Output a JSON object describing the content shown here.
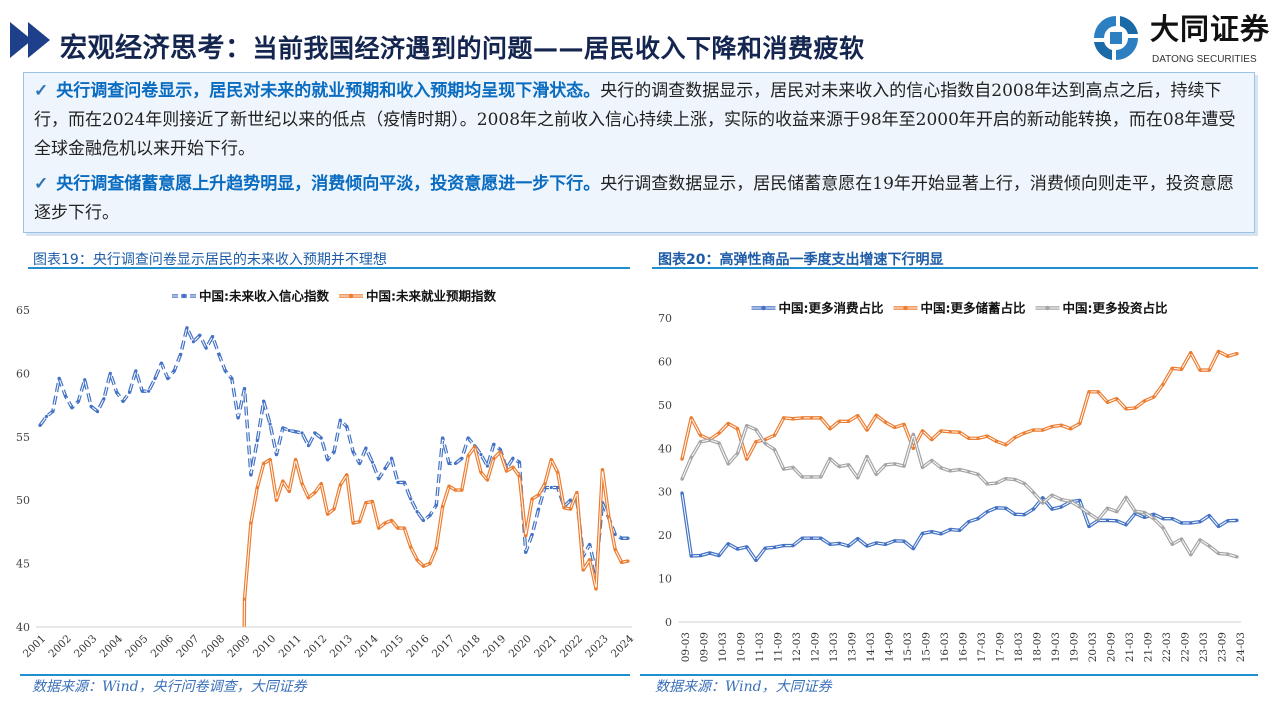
{
  "header": {
    "title_main": "宏观经济思考：",
    "title_sub": "当前我国经济遇到的问题——居民收入下降和消费疲软",
    "logo_name": "大同证券",
    "logo_en": "DATONG SECURITIES",
    "icon": "double-chevron-right-icon"
  },
  "summary": [
    {
      "check": "✓",
      "highlight": "央行调查问卷显示，居民对未来的就业预期和收入预期均呈现下滑状态。",
      "body": "央行的调查数据显示，居民对未来收入的信心指数自2008年达到高点之后，持续下行，而在2024年则接近了新世纪以来的低点（疫情时期）。2008年之前收入信心持续上涨，实际的收益来源于98年至2000年开启的新动能转换，而在08年遭受全球金融危机以来开始下行。"
    },
    {
      "check": "✓",
      "highlight": "央行调查储蓄意愿上升趋势明显，消费倾向平淡，投资意愿进一步下行。",
      "body": "央行调查数据显示，居民储蓄意愿在19年开始显著上行，消费倾向则走平，投资意愿逐步下行。"
    }
  ],
  "colors": {
    "accent": "#1f5ca8",
    "blue": "#4472c4",
    "orange": "#ed7d31",
    "gray": "#a5a5a5"
  },
  "chart_data": [
    {
      "caption": "图表19：央行调查问卷显示居民的未来收入预期并不理想",
      "source": "数据来源：Wind，央行问卷调查，大同证券",
      "type": "line",
      "ylim": [
        40,
        65
      ],
      "yticks": [
        "40",
        "45",
        "50",
        "55",
        "60",
        "65"
      ],
      "xtick_labels": [
        "2001",
        "2002",
        "2003",
        "2004",
        "2005",
        "2006",
        "2007",
        "2008",
        "2009",
        "2010",
        "2011",
        "2012",
        "2013",
        "2014",
        "2015",
        "2016",
        "2017",
        "2018",
        "2019",
        "2020",
        "2021",
        "2022",
        "2023",
        "2024"
      ],
      "legend_position": "top",
      "grid": false,
      "series": [
        {
          "name": "中国:未来收入信心指数",
          "color": "#4472c4",
          "dashed": true,
          "values": [
            55.9,
            56.6,
            57,
            59.6,
            58.2,
            57.3,
            57.8,
            59.5,
            57.4,
            57,
            58,
            60,
            58.5,
            57.8,
            58.5,
            60.2,
            58.6,
            58.6,
            59.6,
            60.8,
            59.6,
            60.2,
            61.5,
            63.6,
            62.5,
            63,
            62,
            62.9,
            61.5,
            60.2,
            59.6,
            56.5,
            58.8,
            52,
            54.7,
            57.8,
            56,
            53.6,
            55.7,
            55.5,
            55.4,
            55.3,
            54.3,
            55.3,
            54.9,
            53.2,
            53.8,
            56.3,
            55.8,
            53.8,
            52.9,
            54.1,
            53,
            51.7,
            52.5,
            53.3,
            51.4,
            51.4,
            50.1,
            49.1,
            48.4,
            48.8,
            49.6,
            54.9,
            52.9,
            52.9,
            53.3,
            54.9,
            54.3,
            53.6,
            52.7,
            54.4,
            54,
            52.5,
            53.3,
            53,
            45.9,
            47.3,
            49.3,
            51,
            51,
            51,
            49.5,
            50,
            50,
            45.6,
            46.5,
            44.3,
            49.8,
            48.6,
            47.3,
            47,
            47
          ]
        },
        {
          "name": "中国:未来就业预期指数",
          "color": "#ed7d31",
          "dashed": false,
          "values": [
            null,
            null,
            null,
            null,
            null,
            null,
            null,
            null,
            null,
            null,
            null,
            null,
            null,
            null,
            null,
            null,
            null,
            null,
            null,
            null,
            null,
            null,
            null,
            null,
            null,
            null,
            null,
            null,
            null,
            null,
            null,
            null,
            42.2,
            48.2,
            51,
            52.9,
            53.2,
            50,
            51.5,
            50.7,
            53.2,
            51.3,
            50.2,
            50.6,
            51.3,
            48.9,
            49.3,
            51.2,
            52,
            48.2,
            48.3,
            49.8,
            49.9,
            47.8,
            48.2,
            48.4,
            47.8,
            47.8,
            46.3,
            45.3,
            44.8,
            45,
            46.2,
            49.5,
            51.1,
            50.8,
            50.8,
            53.5,
            54.2,
            52.2,
            51.6,
            53.3,
            53.8,
            52.3,
            52.6,
            51.9,
            47.2,
            50.1,
            50.4,
            51.3,
            53.2,
            52.2,
            49.4,
            49.3,
            50.6,
            44.5,
            45.3,
            43,
            52.4,
            48.7,
            46.1,
            45.1,
            45.2
          ]
        }
      ]
    },
    {
      "caption": "图表20：高弹性商品一季度支出增速下行明显",
      "source": "数据来源：Wind，大同证券",
      "type": "line",
      "ylim": [
        0,
        70
      ],
      "yticks": [
        "0",
        "10",
        "20",
        "30",
        "40",
        "50",
        "60",
        "70"
      ],
      "xtick_labels": [
        "09-03",
        "09-09",
        "10-03",
        "10-09",
        "11-03",
        "11-09",
        "12-03",
        "12-09",
        "13-03",
        "13-09",
        "14-03",
        "14-09",
        "15-03",
        "15-09",
        "16-03",
        "16-09",
        "17-03",
        "17-09",
        "18-03",
        "18-09",
        "19-03",
        "19-09",
        "20-03",
        "20-09",
        "21-03",
        "21-09",
        "22-03",
        "22-09",
        "23-03",
        "23-09",
        "24-03"
      ],
      "legend_position": "top",
      "grid": false,
      "series": [
        {
          "name": "中国:更多消费占比",
          "color": "#4472c4",
          "values": [
            29.7,
            15.2,
            15.3,
            15.9,
            15.3,
            18,
            16.8,
            17.3,
            14.2,
            17,
            17.2,
            17.6,
            17.6,
            19.3,
            19.3,
            19.3,
            17.9,
            18.1,
            17.5,
            19.2,
            17.5,
            18.2,
            17.9,
            18.7,
            18.6,
            16.9,
            20.4,
            20.8,
            20.3,
            21.3,
            21.1,
            23.1,
            23.8,
            25.4,
            26.3,
            26.2,
            24.8,
            24.7,
            26,
            28.6,
            26,
            26.5,
            27.7,
            28,
            22,
            23.4,
            23.4,
            23.3,
            22.4,
            25,
            24.1,
            24.8,
            23.8,
            23.8,
            22.8,
            22.8,
            23.1,
            24.5,
            22,
            23.3,
            23.4
          ]
        },
        {
          "name": "中国:更多储蓄占比",
          "color": "#ed7d31",
          "values": [
            37.5,
            47,
            43,
            42,
            43.5,
            45.7,
            44.5,
            37.5,
            41.5,
            42,
            43,
            47,
            46.8,
            47,
            47,
            47,
            44.5,
            46.2,
            46.2,
            47.5,
            44.2,
            47.6,
            46,
            44.8,
            45.5,
            40,
            44,
            42,
            44,
            43.8,
            43.7,
            42.3,
            42.3,
            42.8,
            41.6,
            40.8,
            42.5,
            43.5,
            44.2,
            44.2,
            45,
            45.3,
            44.5,
            45.7,
            53,
            53,
            50.6,
            51.4,
            49.1,
            49.3,
            50.9,
            51.8,
            54.7,
            58.4,
            58.2,
            62,
            58,
            58,
            62.3,
            61.2,
            61.8
          ]
        },
        {
          "name": "中国:更多投资占比",
          "color": "#a5a5a5",
          "values": [
            32.9,
            37.9,
            41.5,
            41.9,
            41.2,
            36.4,
            38.8,
            45.2,
            44.3,
            41.1,
            39.7,
            35.2,
            35.6,
            33.4,
            33.4,
            33.4,
            37.6,
            35.8,
            36.2,
            33.2,
            38.1,
            34,
            36.2,
            36.4,
            35.9,
            43.2,
            35.6,
            37.2,
            35.5,
            34.8,
            35.1,
            34.6,
            34,
            31.8,
            32,
            33,
            32.8,
            31.9,
            29.8,
            27.4,
            29.2,
            28.2,
            27.8,
            26.5,
            25,
            23.6,
            26.2,
            25.4,
            28.7,
            25.5,
            25.2,
            23.8,
            21.7,
            17.9,
            19.1,
            15.5,
            18.9,
            17.5,
            15.8,
            15.6,
            15
          ]
        }
      ]
    }
  ]
}
